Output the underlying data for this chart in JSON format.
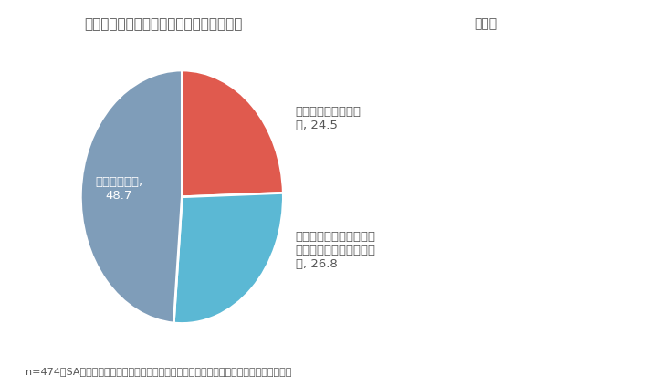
{
  "title": "「フェーズフリー」の認知状況（自治体）",
  "title_right": "（％）",
  "footnote": "n=474，SA　「災害時における授乳環境の整備、および備蓄状況に関する実態調査」より",
  "slices": [
    {
      "label": "意味まで理解してい\nた, 24.5",
      "value": 24.5,
      "color": "#E05A4E"
    },
    {
      "label": "聴いたことはあったが意\n味まで理解していなかっ\nた, 26.8",
      "value": 26.8,
      "color": "#5BB8D4"
    },
    {
      "label": "知らなかった,\n48.7",
      "value": 48.7,
      "color": "#7F9DB9"
    }
  ],
  "startangle": 90,
  "background_color": "#FFFFFF",
  "text_color": "#555555"
}
